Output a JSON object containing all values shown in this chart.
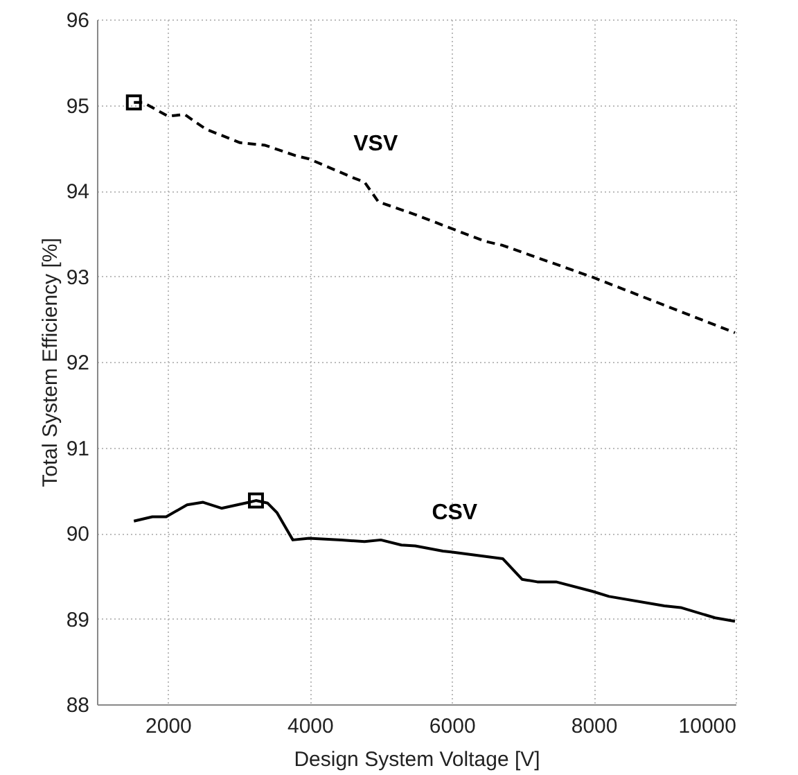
{
  "chart_data": {
    "type": "line",
    "xlabel": "Design System Voltage [V]",
    "ylabel": "Total System Efficiency [%]",
    "xlim": [
      1000,
      10000
    ],
    "xticks": [
      2000,
      4000,
      6000,
      8000,
      10000
    ],
    "ylim": [
      88,
      96
    ],
    "yticks": [
      88,
      89,
      90,
      91,
      92,
      93,
      94,
      95,
      96
    ],
    "grid": true,
    "series": [
      {
        "name": "VSV",
        "color": "#000000",
        "line_style": "dashed",
        "marker": "none",
        "x": [
          1520,
          1650,
          2000,
          2235,
          2530,
          3015,
          3370,
          3795,
          3990,
          4640,
          4770,
          4965,
          5485,
          6460,
          6720,
          7980,
          9990
        ],
        "values": [
          95.03,
          95.03,
          94.87,
          94.89,
          94.72,
          94.56,
          94.53,
          94.41,
          94.37,
          94.14,
          94.1,
          93.87,
          93.72,
          93.41,
          93.36,
          92.99,
          92.34
        ]
      },
      {
        "name": "CSV",
        "color": "#000000",
        "line_style": "solid",
        "marker": "none",
        "x": [
          1520,
          1780,
          1975,
          2270,
          2495,
          2755,
          3145,
          3240,
          3405,
          3535,
          3760,
          3990,
          4445,
          4770,
          5000,
          5290,
          5485,
          5875,
          5990,
          6720,
          6990,
          7205,
          7470,
          7980,
          8215,
          8995,
          9225,
          9710,
          9990
        ],
        "values": [
          90.14,
          90.19,
          90.19,
          90.33,
          90.36,
          90.29,
          90.36,
          90.38,
          90.35,
          90.24,
          89.92,
          89.94,
          89.92,
          89.9,
          89.92,
          89.86,
          89.85,
          89.79,
          89.78,
          89.7,
          89.46,
          89.43,
          89.43,
          89.32,
          89.26,
          89.15,
          89.13,
          89.01,
          88.97
        ]
      },
      {
        "type": "scatter",
        "color": "#000000",
        "marker": "square",
        "x": [
          1520,
          3240
        ],
        "values": [
          95.03,
          90.38
        ]
      }
    ]
  }
}
